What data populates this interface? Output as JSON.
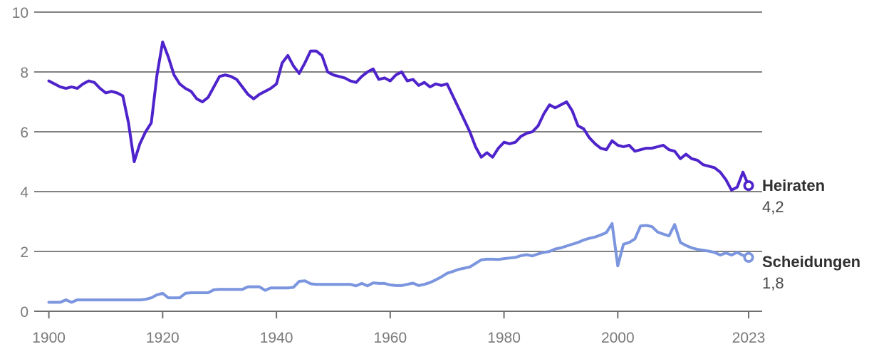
{
  "colors": {
    "background": "#ffffff",
    "gridline": "#818181",
    "axis": "#6f6f6f",
    "tick_label": "#7a7a7a",
    "label_text": "#303030",
    "heiraten_line": "#4f23cb",
    "scheidungen_line": "#7b95de"
  },
  "chart_data": {
    "type": "line",
    "title": "",
    "xlabel": "",
    "ylabel": "",
    "grid": "horizontal",
    "legend_position": "right-end-labels",
    "x_range": [
      1900,
      2023
    ],
    "y_range": [
      0,
      10
    ],
    "x_ticks": [
      "1900",
      "1920",
      "1940",
      "1960",
      "1980",
      "2000",
      "2023"
    ],
    "x_tick_years": [
      1900,
      1920,
      1940,
      1960,
      1980,
      2000,
      2023
    ],
    "y_ticks": [
      "0",
      "2",
      "4",
      "6",
      "8",
      "10"
    ],
    "y_tick_values": [
      0,
      2,
      4,
      6,
      8,
      10
    ],
    "years": [
      1900,
      1901,
      1902,
      1903,
      1904,
      1905,
      1906,
      1907,
      1908,
      1909,
      1910,
      1911,
      1912,
      1913,
      1914,
      1915,
      1916,
      1917,
      1918,
      1919,
      1920,
      1921,
      1922,
      1923,
      1924,
      1925,
      1926,
      1927,
      1928,
      1929,
      1930,
      1931,
      1932,
      1933,
      1934,
      1935,
      1936,
      1937,
      1938,
      1939,
      1940,
      1941,
      1942,
      1943,
      1944,
      1945,
      1946,
      1947,
      1948,
      1949,
      1950,
      1951,
      1952,
      1953,
      1954,
      1955,
      1956,
      1957,
      1958,
      1959,
      1960,
      1961,
      1962,
      1963,
      1964,
      1965,
      1966,
      1967,
      1968,
      1969,
      1970,
      1971,
      1972,
      1973,
      1974,
      1975,
      1976,
      1977,
      1978,
      1979,
      1980,
      1981,
      1982,
      1983,
      1984,
      1985,
      1986,
      1987,
      1988,
      1989,
      1990,
      1991,
      1992,
      1993,
      1994,
      1995,
      1996,
      1997,
      1998,
      1999,
      2000,
      2001,
      2002,
      2003,
      2004,
      2005,
      2006,
      2007,
      2008,
      2009,
      2010,
      2011,
      2012,
      2013,
      2014,
      2015,
      2016,
      2017,
      2018,
      2019,
      2020,
      2021,
      2022,
      2023
    ],
    "series": [
      {
        "name": "Heiraten",
        "end_value_label": "4,2",
        "end_value": 4.2,
        "color": "#4f23cb",
        "values": [
          7.7,
          7.6,
          7.5,
          7.45,
          7.5,
          7.45,
          7.6,
          7.7,
          7.65,
          7.45,
          7.3,
          7.35,
          7.3,
          7.2,
          6.3,
          5.0,
          5.6,
          6.0,
          6.3,
          7.9,
          9.0,
          8.5,
          7.9,
          7.6,
          7.45,
          7.35,
          7.1,
          7.0,
          7.15,
          7.5,
          7.85,
          7.9,
          7.85,
          7.75,
          7.5,
          7.25,
          7.1,
          7.25,
          7.35,
          7.45,
          7.6,
          8.3,
          8.55,
          8.2,
          7.95,
          8.3,
          8.7,
          8.7,
          8.55,
          8.0,
          7.9,
          7.85,
          7.8,
          7.7,
          7.65,
          7.85,
          8.0,
          8.1,
          7.75,
          7.8,
          7.7,
          7.9,
          8.0,
          7.7,
          7.75,
          7.55,
          7.65,
          7.5,
          7.6,
          7.55,
          7.6,
          7.2,
          6.8,
          6.4,
          6.0,
          5.5,
          5.15,
          5.3,
          5.15,
          5.45,
          5.65,
          5.6,
          5.65,
          5.85,
          5.95,
          6.0,
          6.2,
          6.6,
          6.9,
          6.8,
          6.9,
          7.0,
          6.7,
          6.2,
          6.1,
          5.8,
          5.6,
          5.45,
          5.4,
          5.7,
          5.55,
          5.5,
          5.55,
          5.35,
          5.4,
          5.45,
          5.45,
          5.5,
          5.55,
          5.4,
          5.35,
          5.1,
          5.25,
          5.1,
          5.05,
          4.9,
          4.85,
          4.8,
          4.65,
          4.4,
          4.05,
          4.15,
          4.65,
          4.2
        ]
      },
      {
        "name": "Scheidungen",
        "end_value_label": "1,8",
        "end_value": 1.8,
        "color": "#7b95de",
        "values": [
          0.3,
          0.3,
          0.3,
          0.38,
          0.3,
          0.38,
          0.38,
          0.38,
          0.38,
          0.38,
          0.38,
          0.38,
          0.38,
          0.38,
          0.38,
          0.38,
          0.38,
          0.4,
          0.45,
          0.55,
          0.6,
          0.45,
          0.45,
          0.45,
          0.6,
          0.62,
          0.62,
          0.62,
          0.62,
          0.72,
          0.73,
          0.73,
          0.73,
          0.73,
          0.73,
          0.82,
          0.82,
          0.82,
          0.7,
          0.78,
          0.78,
          0.78,
          0.78,
          0.8,
          1.0,
          1.02,
          0.92,
          0.9,
          0.9,
          0.9,
          0.9,
          0.9,
          0.9,
          0.9,
          0.85,
          0.93,
          0.85,
          0.95,
          0.93,
          0.93,
          0.88,
          0.86,
          0.86,
          0.9,
          0.94,
          0.86,
          0.9,
          0.96,
          1.05,
          1.15,
          1.27,
          1.33,
          1.4,
          1.44,
          1.48,
          1.6,
          1.72,
          1.74,
          1.74,
          1.73,
          1.76,
          1.78,
          1.8,
          1.86,
          1.89,
          1.85,
          1.92,
          1.97,
          2.0,
          2.08,
          2.12,
          2.18,
          2.24,
          2.3,
          2.38,
          2.44,
          2.48,
          2.55,
          2.63,
          2.93,
          1.52,
          2.24,
          2.3,
          2.42,
          2.85,
          2.87,
          2.83,
          2.65,
          2.58,
          2.52,
          2.9,
          2.3,
          2.2,
          2.12,
          2.07,
          2.04,
          2.01,
          1.97,
          1.88,
          1.95,
          1.88,
          1.97,
          1.87,
          1.8
        ]
      }
    ]
  }
}
